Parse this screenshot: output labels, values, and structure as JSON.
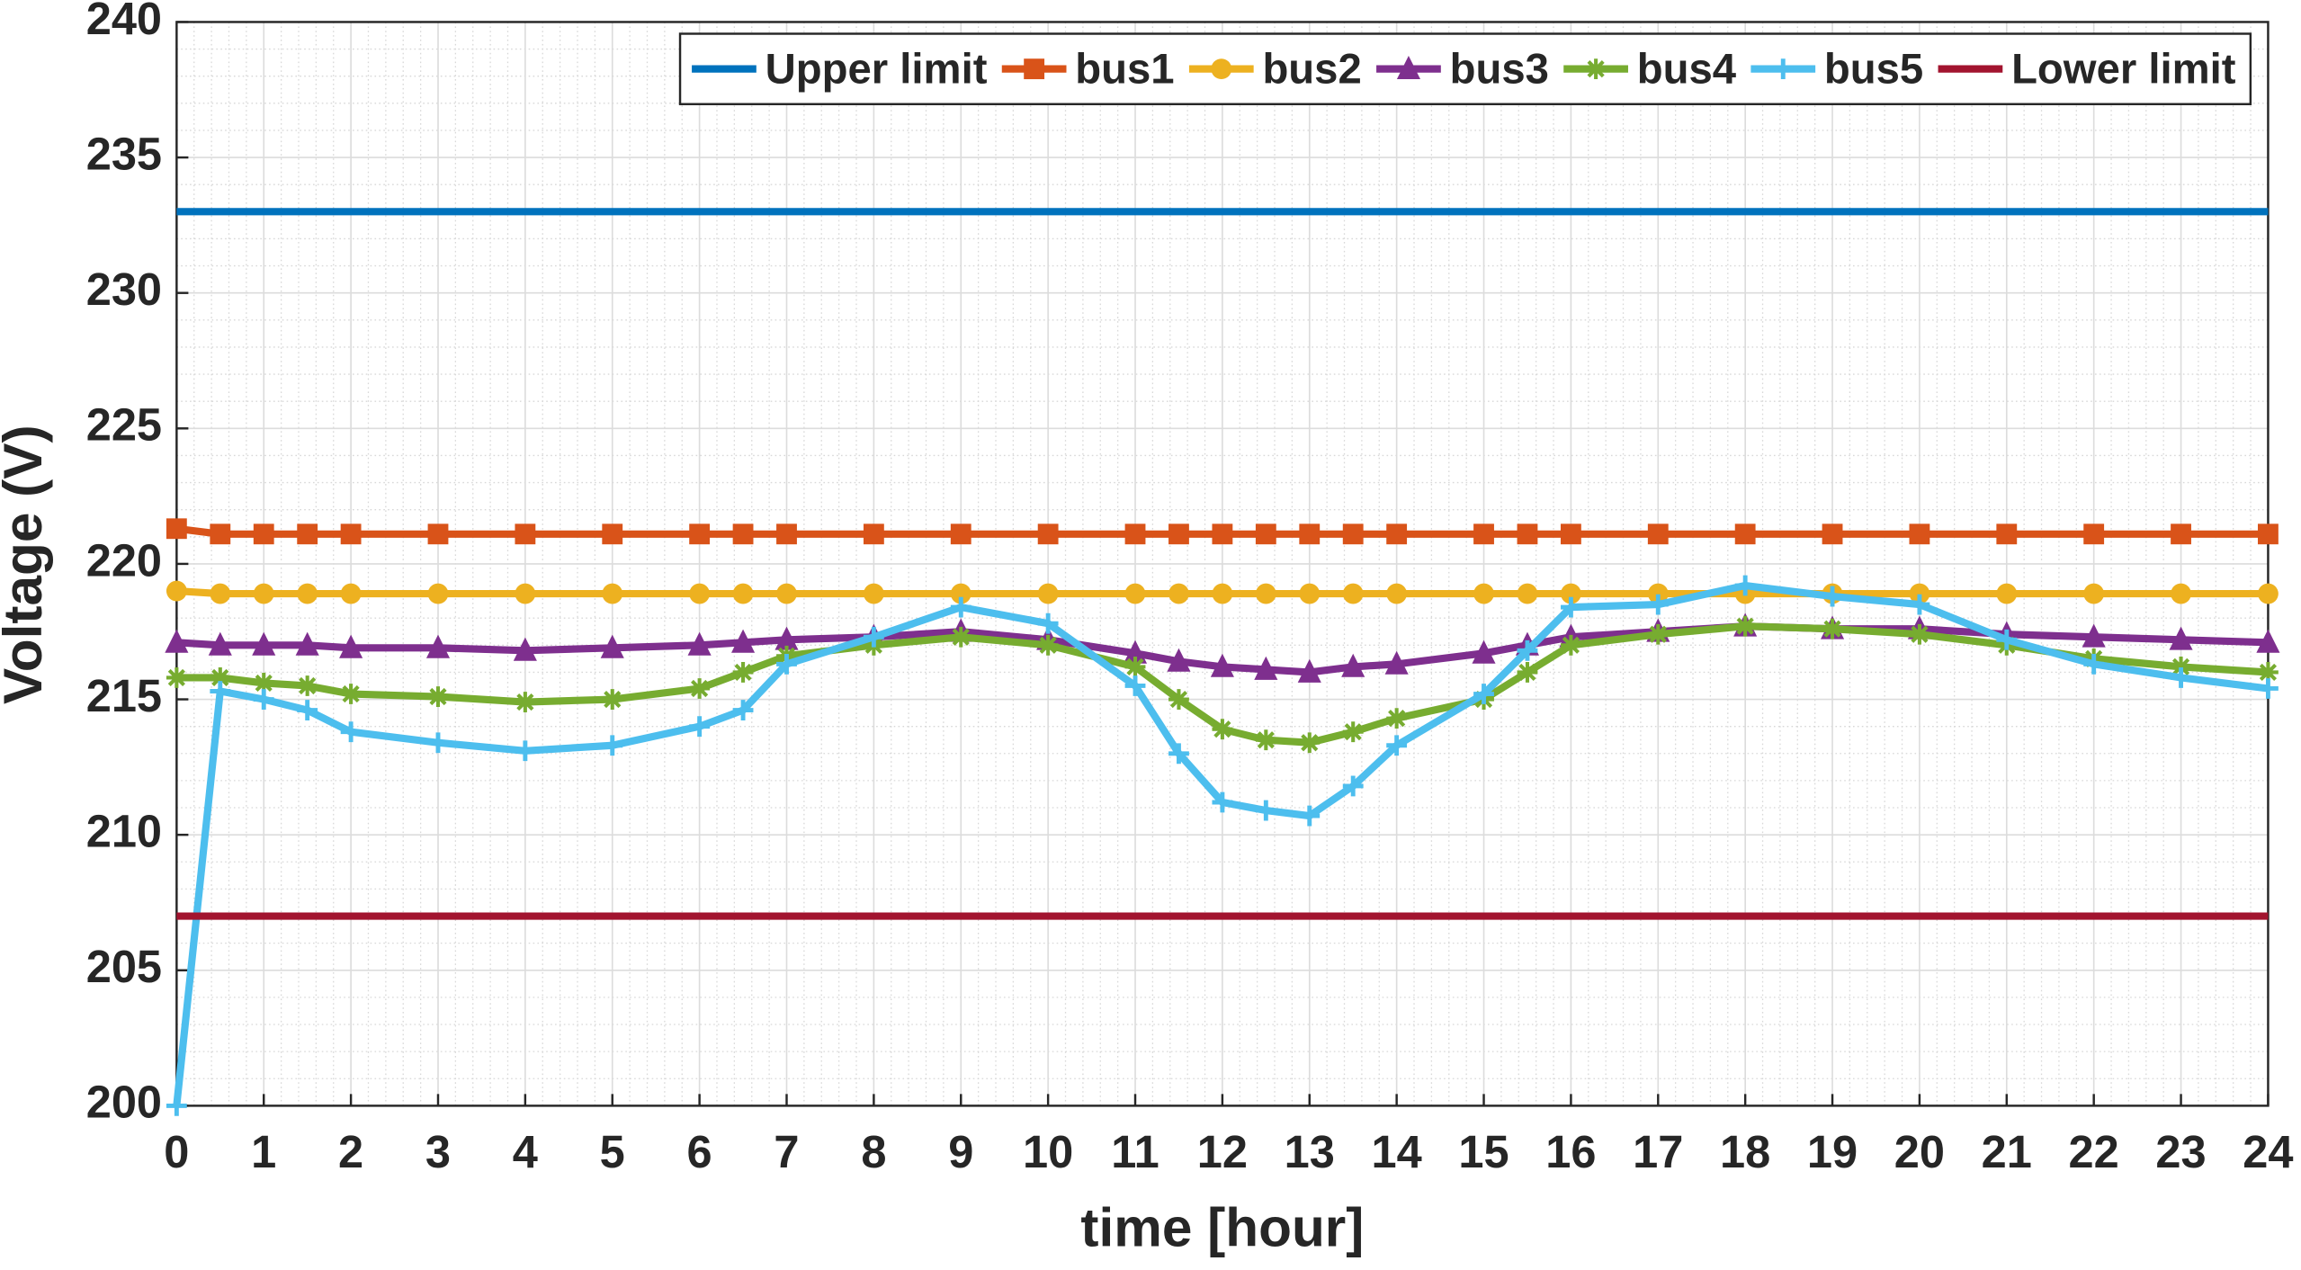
{
  "chart_data": {
    "type": "line",
    "x_label": "time [hour]",
    "y_label": "Voltage (V)",
    "x": [
      0,
      0.5,
      1,
      1.5,
      2,
      3,
      4,
      5,
      6,
      6.5,
      7,
      8,
      9,
      10,
      11,
      11.5,
      12,
      12.5,
      13,
      13.5,
      14,
      15,
      15.5,
      16,
      17,
      18,
      19,
      20,
      21,
      22,
      23,
      24
    ],
    "series": [
      {
        "name": "Upper limit",
        "color": "#0072bd",
        "marker": "none",
        "values": [
          233,
          233,
          233,
          233,
          233,
          233,
          233,
          233,
          233,
          233,
          233,
          233,
          233,
          233,
          233,
          233,
          233,
          233,
          233,
          233,
          233,
          233,
          233,
          233,
          233,
          233,
          233,
          233,
          233,
          233,
          233,
          233
        ]
      },
      {
        "name": "bus1",
        "color": "#d95319",
        "marker": "square",
        "values": [
          221.3,
          221.1,
          221.1,
          221.1,
          221.1,
          221.1,
          221.1,
          221.1,
          221.1,
          221.1,
          221.1,
          221.1,
          221.1,
          221.1,
          221.1,
          221.1,
          221.1,
          221.1,
          221.1,
          221.1,
          221.1,
          221.1,
          221.1,
          221.1,
          221.1,
          221.1,
          221.1,
          221.1,
          221.1,
          221.1,
          221.1,
          221.1
        ]
      },
      {
        "name": "bus2",
        "color": "#edb120",
        "marker": "circle",
        "values": [
          219,
          218.9,
          218.9,
          218.9,
          218.9,
          218.9,
          218.9,
          218.9,
          218.9,
          218.9,
          218.9,
          218.9,
          218.9,
          218.9,
          218.9,
          218.9,
          218.9,
          218.9,
          218.9,
          218.9,
          218.9,
          218.9,
          218.9,
          218.9,
          218.9,
          218.9,
          218.9,
          218.9,
          218.9,
          218.9,
          218.9,
          218.9
        ]
      },
      {
        "name": "bus3",
        "color": "#7e2f8e",
        "marker": "triangle",
        "values": [
          217.1,
          217.0,
          217.0,
          217.0,
          216.9,
          216.9,
          216.8,
          216.9,
          217.0,
          217.1,
          217.2,
          217.3,
          217.5,
          217.2,
          216.7,
          216.4,
          216.2,
          216.1,
          216.0,
          216.2,
          216.3,
          216.7,
          217.0,
          217.3,
          217.5,
          217.7,
          217.6,
          217.6,
          217.4,
          217.3,
          217.2,
          217.1
        ]
      },
      {
        "name": "bus4",
        "color": "#77ac30",
        "marker": "star",
        "values": [
          215.8,
          215.8,
          215.6,
          215.5,
          215.2,
          215.1,
          214.9,
          215.0,
          215.4,
          216.0,
          216.6,
          217.0,
          217.3,
          217.0,
          216.2,
          215.0,
          213.9,
          213.5,
          213.4,
          213.8,
          214.3,
          215.0,
          216.0,
          217.0,
          217.4,
          217.7,
          217.6,
          217.4,
          217.0,
          216.5,
          216.2,
          216.0
        ]
      },
      {
        "name": "bus5",
        "color": "#4dbeee",
        "marker": "plus",
        "values": [
          200,
          215.3,
          215.0,
          214.6,
          213.8,
          213.4,
          213.1,
          213.3,
          214.0,
          214.6,
          216.3,
          217.3,
          218.4,
          217.8,
          215.5,
          213.0,
          211.2,
          210.9,
          210.7,
          211.8,
          213.3,
          215.2,
          216.8,
          218.4,
          218.5,
          219.2,
          218.8,
          218.5,
          217.2,
          216.3,
          215.8,
          215.4
        ]
      },
      {
        "name": "Lower limit",
        "color": "#a2142f",
        "marker": "none",
        "values": [
          207,
          207,
          207,
          207,
          207,
          207,
          207,
          207,
          207,
          207,
          207,
          207,
          207,
          207,
          207,
          207,
          207,
          207,
          207,
          207,
          207,
          207,
          207,
          207,
          207,
          207,
          207,
          207,
          207,
          207,
          207,
          207
        ]
      }
    ],
    "xlim": [
      0,
      24
    ],
    "xticks": [
      0,
      1,
      2,
      3,
      4,
      5,
      6,
      7,
      8,
      9,
      10,
      11,
      12,
      13,
      14,
      15,
      16,
      17,
      18,
      19,
      20,
      21,
      22,
      23,
      24
    ],
    "ylim": [
      200,
      240
    ],
    "yticks": [
      200,
      205,
      210,
      215,
      220,
      225,
      230,
      235,
      240
    ],
    "grid": true,
    "minor_grid": true,
    "legend": "north-east"
  }
}
